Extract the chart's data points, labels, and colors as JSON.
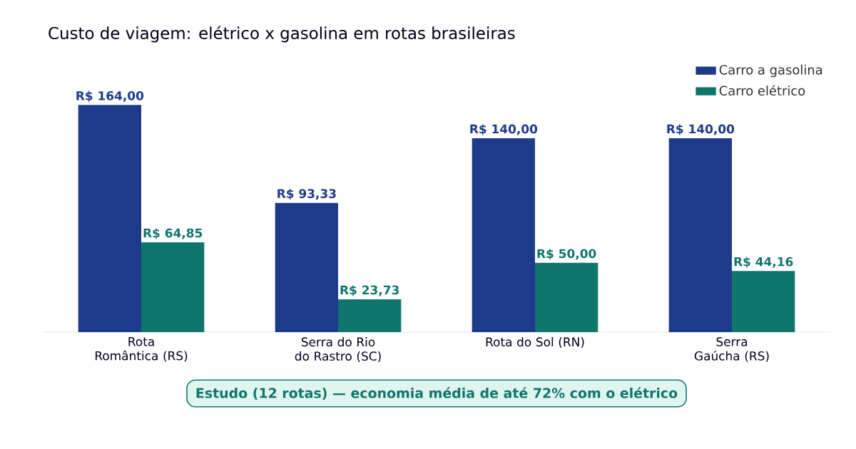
{
  "chart_data": {
    "type": "bar",
    "title": "Custo de viagem: elétrico x gasolina em rotas brasileiras",
    "categories": [
      "Rota Romântica (RS)",
      "Serra do Rio do Rastro (SC)",
      "Rota do Sol (RN)",
      "Serra Gaúcha (RS)"
    ],
    "series": [
      {
        "name": "Carro a gasolina",
        "color": "#1e3a8a",
        "values": [
          164,
          93.33,
          140,
          140
        ],
        "value_labels": [
          "R$ 164,00",
          "R$ 93,33",
          "R$ 140,00",
          "R$ 140,00"
        ]
      },
      {
        "name": "Carro elétrico",
        "color": "#0f766e",
        "values": [
          64.85,
          23.73,
          50,
          44.16
        ],
        "value_labels": [
          "R$ 64,85",
          "R$ 23,73",
          "R$ 50,00",
          "R$ 44,16"
        ]
      }
    ],
    "legend": "top right",
    "annotations": [
      "Estudo (12 rotas) — economia média de até 72% com o elétrico"
    ]
  }
}
